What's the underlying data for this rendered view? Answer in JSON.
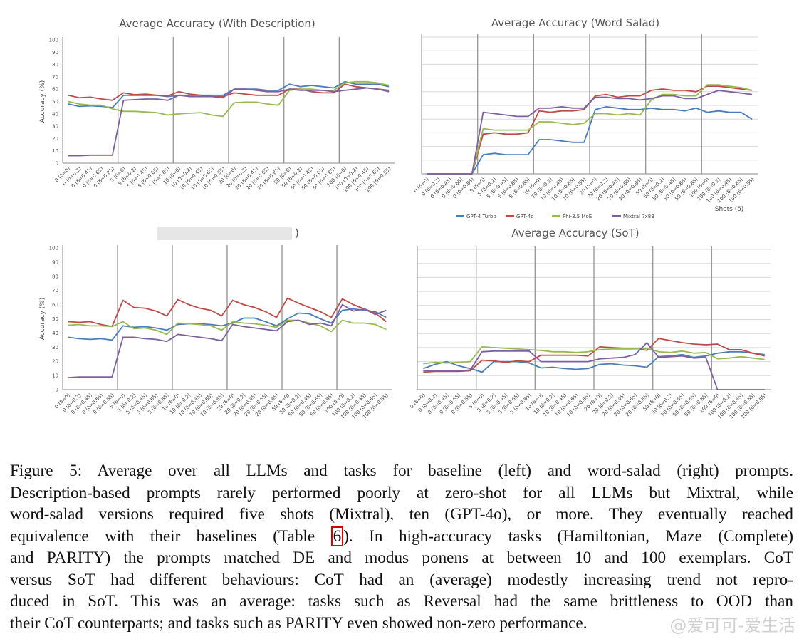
{
  "chart_data": [
    {
      "type": "line",
      "title": "Average Accuracy (With Description)",
      "ylabel": "Accuracy (%)",
      "xlabel": "",
      "ylim": [
        0,
        100
      ],
      "yticks": [
        0,
        10,
        20,
        30,
        40,
        50,
        60,
        70,
        80,
        90,
        100
      ],
      "show_yticks": true,
      "grid": false,
      "categories": [
        "0 (δ=0)",
        "0 (δ=0.2)",
        "0 (δ=0.45)",
        "0 (δ=0.65)",
        "0 (δ=0.85)",
        "5 (δ=0)",
        "5 (δ=0.2)",
        "5 (δ=0.45)",
        "5 (δ=0.65)",
        "5 (δ=0.85)",
        "10 (δ=0)",
        "10 (δ=0.2)",
        "10 (δ=0.45)",
        "10 (δ=0.65)",
        "10 (δ=0.85)",
        "20 (δ=0)",
        "20 (δ=0.2)",
        "20 (δ=0.45)",
        "20 (δ=0.65)",
        "20 (δ=0.85)",
        "50 (δ=0)",
        "50 (δ=0.2)",
        "50 (δ=0.45)",
        "50 (δ=0.65)",
        "50 (δ=0.85)",
        "100 (δ=0)",
        "100 (δ=0.2)",
        "100 (δ=0.45)",
        "100 (δ=0.65)",
        "100 (δ=0.85)"
      ],
      "separators": [
        5,
        10,
        15,
        20,
        25
      ],
      "series": [
        {
          "color": "#4a7ebb",
          "values": [
            48,
            46,
            46.5,
            46,
            45,
            55,
            55,
            55,
            55,
            54,
            55,
            55,
            55,
            55,
            55,
            60,
            60,
            60,
            59,
            59,
            64,
            62,
            63,
            62,
            61,
            66,
            64,
            64,
            64,
            62
          ]
        },
        {
          "color": "#be4b48",
          "values": [
            55,
            53,
            53.5,
            52,
            51,
            57,
            55.5,
            56,
            55,
            54.5,
            58,
            56,
            55,
            54,
            54,
            57,
            56,
            55,
            55,
            55,
            60,
            60,
            58,
            57,
            57,
            64,
            62,
            61,
            60,
            59
          ]
        },
        {
          "color": "#98b954",
          "values": [
            50,
            48,
            47,
            47,
            44,
            42,
            42,
            41.5,
            41,
            39,
            40,
            40.5,
            41,
            39,
            38,
            49,
            49.5,
            49.5,
            48,
            47,
            59,
            60,
            60,
            59,
            59,
            65,
            66,
            66,
            65,
            63
          ]
        },
        {
          "color": "#7d60a0",
          "values": [
            6,
            6,
            6.5,
            6.5,
            6.5,
            51,
            51.5,
            52,
            52,
            51,
            55,
            54,
            54,
            54,
            53,
            60,
            60,
            59,
            58,
            58,
            60,
            59,
            59,
            59,
            58,
            59,
            60,
            61,
            60,
            58
          ]
        }
      ]
    },
    {
      "type": "line",
      "title": "Average Accuracy (Word Salad)",
      "ylabel": "",
      "xlabel": "Shots (δ)",
      "ylim": [
        0,
        100
      ],
      "show_yticks": false,
      "grid": true,
      "categories": [
        "0 (δ=0)",
        "0 (δ=0.2)",
        "0 (δ=0.45)",
        "0 (δ=0.65)",
        "0 (δ=0.85)",
        "5 (δ=0)",
        "5 (δ=0.2)",
        "5 (δ=0.45)",
        "5 (δ=0.65)",
        "5 (δ=0.85)",
        "10 (δ=0)",
        "10 (δ=0.2)",
        "10 (δ=0.45)",
        "10 (δ=0.65)",
        "10 (δ=0.85)",
        "20 (δ=0)",
        "20 (δ=0.2)",
        "20 (δ=0.45)",
        "20 (δ=0.65)",
        "20 (δ=0.85)",
        "50 (δ=0)",
        "50 (δ=0.2)",
        "50 (δ=0.45)",
        "50 (δ=0.65)",
        "50 (δ=0.85)",
        "100 (δ=0)",
        "100 (δ=0.2)",
        "100 (δ=0.45)",
        "100 (δ=0.65)",
        "100 (δ=0.85)"
      ],
      "separators": [
        5,
        10,
        15,
        20,
        25
      ],
      "legend": [
        "GPT-4 Turbo",
        "GPT-4o",
        "Phi-3.5 MoE",
        "Mixtral 7x8B"
      ],
      "series": [
        {
          "name": "GPT-4 Turbo",
          "color": "#4a7ebb",
          "values": [
            0,
            0,
            0,
            0,
            0,
            14,
            15,
            14,
            14,
            14,
            25,
            25,
            24,
            23,
            23,
            47,
            49,
            48,
            47,
            47,
            48,
            47,
            47,
            46,
            48,
            45,
            46,
            45,
            45,
            40
          ]
        },
        {
          "name": "GPT-4o",
          "color": "#be4b48",
          "values": [
            0,
            0,
            0,
            0,
            0,
            29,
            30,
            29,
            29,
            30,
            46,
            45,
            46,
            46,
            47,
            57,
            58,
            56,
            57,
            57,
            61,
            62,
            61,
            61,
            60,
            64,
            64,
            63,
            62,
            61
          ]
        },
        {
          "name": "Phi-3.5 MoE",
          "color": "#98b954",
          "values": [
            0,
            0,
            0,
            0,
            0,
            33,
            32,
            32,
            32,
            32,
            38,
            38,
            37,
            36,
            37,
            44,
            44,
            43,
            44,
            43,
            54,
            58,
            58,
            57,
            57,
            65,
            65,
            64,
            63,
            61
          ]
        },
        {
          "name": "Mixtral 7x8B",
          "color": "#7d60a0",
          "values": [
            0,
            0,
            0,
            0,
            0,
            45,
            44,
            43,
            42,
            42,
            48,
            48,
            49,
            48,
            48,
            56,
            56,
            55,
            55,
            54,
            55,
            57,
            57,
            55,
            55,
            58,
            61,
            60,
            59,
            58
          ]
        }
      ]
    },
    {
      "type": "line",
      "title": "",
      "ylabel": "Accuracy (%)",
      "xlabel": "",
      "ylim": [
        0,
        100
      ],
      "yticks": [
        0,
        10,
        20,
        30,
        40,
        50,
        60,
        70,
        80,
        90,
        100
      ],
      "show_yticks": true,
      "grid": false,
      "title_partial": ")",
      "categories": [
        "0 (δ=0)",
        "0 (δ=0.2)",
        "0 (δ=0.45)",
        "0 (δ=0.65)",
        "0 (δ=0.85)",
        "5 (δ=0)",
        "5 (δ=0.2)",
        "5 (δ=0.45)",
        "5 (δ=0.65)",
        "5 (δ=0.85)",
        "10 (δ=0)",
        "10 (δ=0.2)",
        "10 (δ=0.45)",
        "10 (δ=0.65)",
        "10 (δ=0.85)",
        "20 (δ=0)",
        "20 (δ=0.2)",
        "20 (δ=0.45)",
        "20 (δ=0.65)",
        "20 (δ=0.85)",
        "50 (δ=0)",
        "50 (δ=0.2)",
        "50 (δ=0.45)",
        "50 (δ=0.65)",
        "50 (δ=0.85)",
        "100 (δ=0)",
        "100 (δ=0.2)",
        "100 (δ=0.45)",
        "100 (δ=0.65)",
        "100 (δ=0.85)"
      ],
      "separators": [
        5,
        10,
        15,
        20,
        25
      ],
      "series": [
        {
          "color": "#4a7ebb",
          "values": [
            37,
            36,
            35.5,
            36,
            35,
            45,
            44,
            44.5,
            43.5,
            42,
            46,
            46.5,
            46.5,
            46,
            45,
            47,
            50.5,
            50.5,
            48,
            45,
            50,
            54,
            53.5,
            50,
            47,
            56,
            57,
            56,
            55,
            51
          ]
        },
        {
          "color": "#be4b48",
          "values": [
            48,
            47.5,
            48,
            46,
            44.5,
            63,
            58,
            57.5,
            55.5,
            52,
            63.5,
            60,
            57.5,
            56,
            52,
            63,
            60,
            58,
            55,
            51,
            64.5,
            61,
            58,
            55,
            51,
            64,
            60,
            57,
            54,
            48
          ]
        },
        {
          "color": "#98b954",
          "values": [
            45.5,
            46,
            45,
            45,
            44.5,
            48,
            43,
            43.5,
            42,
            39,
            47,
            46.5,
            46,
            45,
            42,
            48,
            47,
            46.5,
            45.5,
            44,
            49,
            49,
            47,
            45,
            41,
            49,
            47,
            47,
            46,
            42.5
          ]
        },
        {
          "color": "#7d60a0",
          "values": [
            8.5,
            9,
            9,
            9,
            9,
            37,
            37,
            36,
            35.5,
            34,
            39,
            38,
            37,
            36,
            34.5,
            46,
            44.5,
            43.5,
            42.5,
            41.5,
            48,
            49,
            46,
            47,
            45,
            60,
            55.5,
            57,
            53,
            56
          ]
        }
      ]
    },
    {
      "type": "line",
      "title": "Average Accuracy (SoT)",
      "ylabel": "",
      "xlabel": "",
      "ylim": [
        0,
        100
      ],
      "show_yticks": false,
      "grid": true,
      "categories": [
        "0 (δ=0)",
        "0 (δ=0.2)",
        "0 (δ=0.45)",
        "0 (δ=0.65)",
        "0 (δ=0.85)",
        "5 (δ=0)",
        "5 (δ=0.2)",
        "5 (δ=0.45)",
        "5 (δ=0.65)",
        "5 (δ=0.85)",
        "10 (δ=0)",
        "10 (δ=0.2)",
        "10 (δ=0.45)",
        "10 (δ=0.65)",
        "10 (δ=0.85)",
        "20 (δ=0)",
        "20 (δ=0.2)",
        "20 (δ=0.45)",
        "20 (δ=0.65)",
        "20 (δ=0.85)",
        "50 (δ=0)",
        "50 (δ=0.2)",
        "50 (δ=0.45)",
        "50 (δ=0.65)",
        "50 (δ=0.85)",
        "100 (δ=0)",
        "100 (δ=0.2)",
        "100 (δ=0.45)",
        "100 (δ=0.65)",
        "100 (δ=0.85)"
      ],
      "separators": [
        5,
        10,
        15,
        20,
        25
      ],
      "series": [
        {
          "color": "#4a7ebb",
          "values": [
            15,
            18,
            20,
            17,
            15,
            12.5,
            20,
            20,
            20,
            19,
            15.5,
            16,
            15,
            14.5,
            15,
            18,
            18.5,
            17.5,
            17,
            16,
            23.5,
            24,
            25,
            23,
            24,
            26,
            27,
            27,
            26,
            25
          ]
        },
        {
          "color": "#be4b48",
          "values": [
            12.5,
            13,
            13,
            13,
            13.5,
            21,
            20.5,
            19.5,
            20.5,
            20,
            24.5,
            24.5,
            24.5,
            24.5,
            24,
            30.5,
            30,
            29.5,
            29.5,
            28,
            36.5,
            35,
            33.5,
            32.5,
            32,
            32.5,
            28.5,
            28.5,
            26,
            24
          ]
        },
        {
          "color": "#98b954",
          "values": [
            18.5,
            19.5,
            19,
            19.5,
            20,
            30.5,
            30,
            29.5,
            29,
            28.5,
            28,
            27,
            27,
            26.5,
            27,
            28.5,
            29,
            29,
            29,
            29.5,
            27,
            26.5,
            27.5,
            26,
            26.5,
            22,
            22.5,
            23.5,
            22.5,
            21.5
          ]
        },
        {
          "color": "#7d60a0",
          "values": [
            13.5,
            13.5,
            13.5,
            13.5,
            14,
            27,
            27.5,
            27.5,
            27.5,
            27.5,
            20,
            20,
            20,
            20,
            20,
            22,
            22.5,
            23,
            25,
            33.5,
            23,
            23.5,
            24,
            22.5,
            23,
            0,
            0,
            0,
            0,
            0
          ]
        }
      ]
    }
  ],
  "caption": {
    "lines": [
      "Figure 5: Average over all LLMs and tasks for baseline (left) and word-salad (right) prompts.",
      "Description-based prompts rarely performed poorly at zero-shot for all LLMs but Mixtral, while",
      "word-salad versions required five shots (Mixtral), ten (GPT-4o), or more. They eventually reached"
    ],
    "line4_before": "equivalence with their baselines (Table ",
    "ref": "6",
    "line4_after": "). In high-accuracy tasks (Hamiltonian, Maze (Complete)",
    "lines_after": [
      "and PARITY) the prompts matched DE and modus ponens at between 10 and 100 exemplars. CoT",
      "versus SoT had different behaviours: CoT had an (average) modestly increasing trend not repro-",
      "duced in SoT. This was an average: tasks such as Reversal had the same brittleness to OOD than",
      "their CoT counterparts; and tasks such as PARITY even showed non-zero performance."
    ]
  },
  "watermark": "@爱可可-爱生活"
}
